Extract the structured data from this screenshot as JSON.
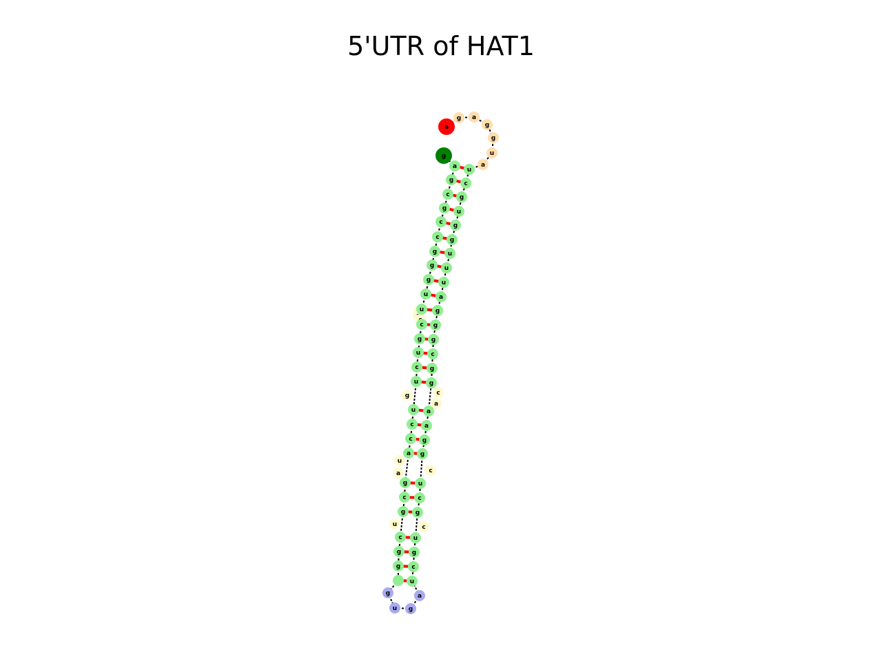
{
  "title": "5'UTR of HAT1",
  "colors": {
    "stem": "#90ee90",
    "internal_loop": "#fffacd",
    "hairpin_loop": "#a9aaef",
    "exterior_loop": "#ffdead",
    "five_prime_marker": "#ff0000",
    "three_prime_marker": "#008000",
    "pair_bond": "#ff0000",
    "backbone": "#000000"
  },
  "structure": {
    "five_prime_end": "a",
    "three_prime_end": "g",
    "exterior_loop": [
      "g",
      "a",
      "g",
      "g",
      "u",
      "a"
    ],
    "hairpin_loop": [
      "g",
      "u",
      "g",
      "a"
    ],
    "left_strand_bases": [
      "a",
      "g",
      "c",
      "g",
      "c",
      "c",
      "g",
      "g",
      "g",
      "u",
      "u",
      "c",
      "g",
      "u",
      "c",
      "u",
      "u",
      "c",
      "c",
      "a",
      "g",
      "c",
      "g",
      "c",
      "g",
      "g"
    ],
    "right_strand_bases": [
      "u",
      "c",
      "g",
      "u",
      "g",
      "g",
      "u",
      "u",
      "u",
      "a",
      "g",
      "g",
      "g",
      "c",
      "g",
      "g",
      "a",
      "a",
      "g",
      "g",
      "u",
      "c",
      "g",
      "u",
      "g",
      "c",
      "u"
    ],
    "internal_loop_bases": [
      "c",
      "a",
      "g",
      "u",
      "a",
      "c",
      "u",
      "c",
      "c",
      "a",
      "c"
    ]
  }
}
